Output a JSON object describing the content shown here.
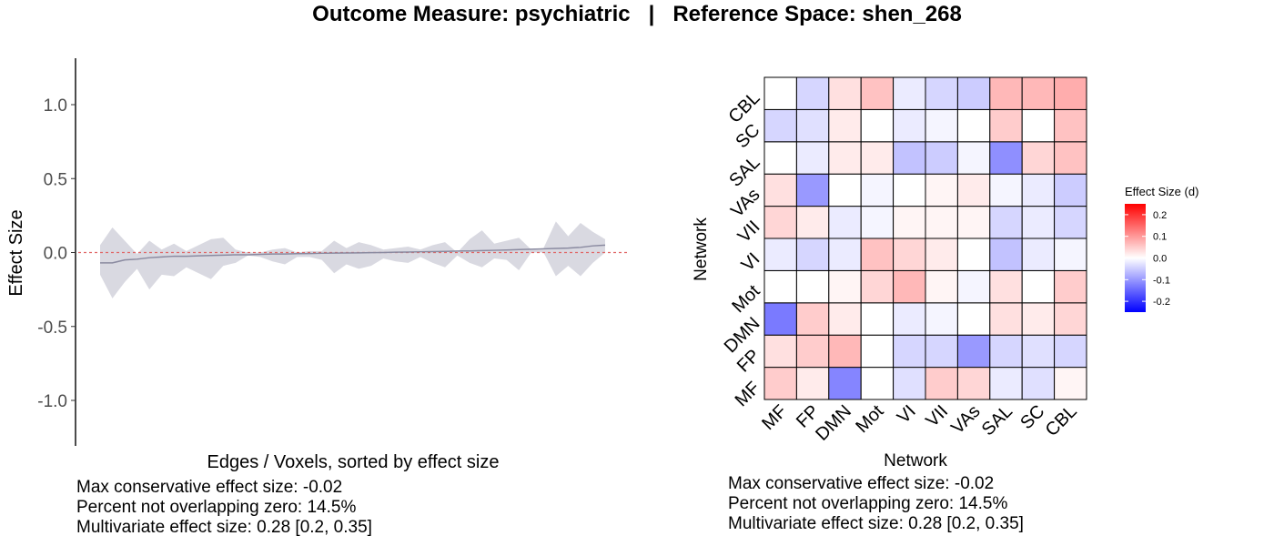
{
  "title": "Outcome Measure: psychiatric   |   Reference Space: shen_268",
  "left_panel": {
    "stats": [
      "Max conservative effect size: -0.02",
      "Percent not overlapping zero: 14.5%",
      "Multivariate effect size: 0.28 [0.2, 0.35]"
    ]
  },
  "right_panel": {
    "stats": [
      "Max conservative effect size: -0.02",
      "Percent not overlapping zero: 14.5%",
      "Multivariate effect size: 0.28 [0.2, 0.35]"
    ]
  },
  "chart_data": [
    {
      "type": "area",
      "xlabel": "Edges / Voxels, sorted by effect size",
      "ylabel": "Effect Size",
      "ylim": [
        -1.3,
        1.3
      ],
      "yticks": [
        -1.0,
        -0.5,
        0.0,
        0.5,
        1.0
      ],
      "ytick_labels": [
        "-1.0",
        "-0.5",
        "0.0",
        "0.5",
        "1.0"
      ],
      "reference_line": 0.0,
      "reference_line_color": "#e06666",
      "band_color": "#d9d9e1",
      "line_color": "#8a8aa0",
      "series": [
        {
          "estimate": [
            -0.07,
            -0.07,
            -0.05,
            -0.045,
            -0.035,
            -0.03,
            -0.025,
            -0.025,
            -0.022,
            -0.02,
            -0.018,
            -0.015,
            -0.015,
            -0.012,
            -0.01,
            -0.01,
            -0.008,
            -0.007,
            -0.005,
            -0.004,
            -0.003,
            -0.002,
            -0.001,
            0.0,
            0.002,
            0.003,
            0.005,
            0.006,
            0.008,
            0.01,
            0.011,
            0.013,
            0.015,
            0.017,
            0.02,
            0.022,
            0.025,
            0.028,
            0.03,
            0.035,
            0.045,
            0.05
          ],
          "upper": [
            0.05,
            0.17,
            0.08,
            -0.01,
            0.08,
            0.02,
            0.06,
            0.01,
            0.05,
            0.09,
            0.1,
            0.02,
            0.0,
            0.0,
            0.02,
            0.03,
            0.0,
            0.01,
            0.01,
            0.08,
            0.03,
            0.07,
            0.05,
            0.02,
            0.03,
            0.04,
            0.02,
            0.05,
            0.07,
            0.0,
            0.09,
            0.15,
            0.06,
            0.08,
            0.1,
            0.02,
            0.03,
            0.21,
            0.11,
            0.2,
            0.14,
            0.09
          ],
          "lower": [
            -0.15,
            -0.31,
            -0.2,
            -0.11,
            -0.25,
            -0.15,
            -0.16,
            -0.1,
            -0.14,
            -0.18,
            -0.09,
            -0.07,
            -0.02,
            -0.03,
            -0.06,
            -0.08,
            -0.03,
            -0.03,
            -0.05,
            -0.14,
            -0.08,
            -0.11,
            -0.09,
            -0.04,
            -0.06,
            -0.07,
            -0.03,
            -0.07,
            -0.1,
            -0.02,
            -0.07,
            -0.1,
            -0.04,
            -0.05,
            -0.12,
            0.0,
            0.0,
            -0.16,
            -0.09,
            -0.16,
            -0.07,
            0.0
          ]
        }
      ]
    },
    {
      "type": "heatmap",
      "xlabel": "Network",
      "ylabel": "Network",
      "x_categories": [
        "MF",
        "FP",
        "DMN",
        "Mot",
        "VI",
        "VII",
        "VAs",
        "SAL",
        "SC",
        "CBL"
      ],
      "y_categories": [
        "MF",
        "FP",
        "DMN",
        "Mot",
        "VI",
        "VII",
        "VAs",
        "SAL",
        "SC",
        "CBL"
      ],
      "values": [
        [
          0.05,
          0.02,
          -0.12,
          0.0,
          -0.03,
          0.05,
          0.04,
          -0.02,
          -0.03,
          0.01
        ],
        [
          0.03,
          0.05,
          0.07,
          0.0,
          -0.04,
          -0.04,
          -0.1,
          -0.04,
          -0.03,
          -0.04
        ],
        [
          -0.13,
          0.05,
          0.02,
          0.0,
          -0.02,
          -0.01,
          0.0,
          0.03,
          0.02,
          0.04
        ],
        [
          0.0,
          0.0,
          0.01,
          0.04,
          0.07,
          0.01,
          -0.01,
          0.03,
          0.0,
          0.05
        ],
        [
          -0.02,
          -0.04,
          -0.02,
          0.06,
          0.04,
          0.02,
          0.0,
          -0.06,
          -0.02,
          -0.01
        ],
        [
          0.04,
          0.02,
          -0.02,
          -0.01,
          0.01,
          0.01,
          0.01,
          -0.04,
          -0.02,
          -0.04
        ],
        [
          0.03,
          -0.1,
          0.0,
          -0.01,
          0.0,
          0.01,
          0.02,
          -0.01,
          -0.02,
          -0.05
        ],
        [
          0.0,
          -0.02,
          0.02,
          0.02,
          -0.06,
          -0.05,
          -0.01,
          -0.11,
          0.04,
          0.06
        ],
        [
          -0.04,
          -0.03,
          0.02,
          0.0,
          -0.02,
          -0.01,
          0.0,
          0.05,
          0.0,
          0.06
        ],
        [
          0.0,
          -0.04,
          0.03,
          0.06,
          -0.02,
          -0.04,
          -0.05,
          0.07,
          0.07,
          0.08
        ]
      ],
      "legend": {
        "title": "Effect Size (d)",
        "range": [
          -0.25,
          0.25
        ],
        "ticks": [
          0.2,
          0.1,
          0.0,
          -0.1,
          -0.2
        ],
        "tick_labels": [
          "0.2",
          "0.1",
          "0.0",
          "-0.1",
          "-0.2"
        ],
        "colors": [
          "#0000ff",
          "#ffffff",
          "#ff0000"
        ],
        "placement": "right"
      }
    }
  ]
}
